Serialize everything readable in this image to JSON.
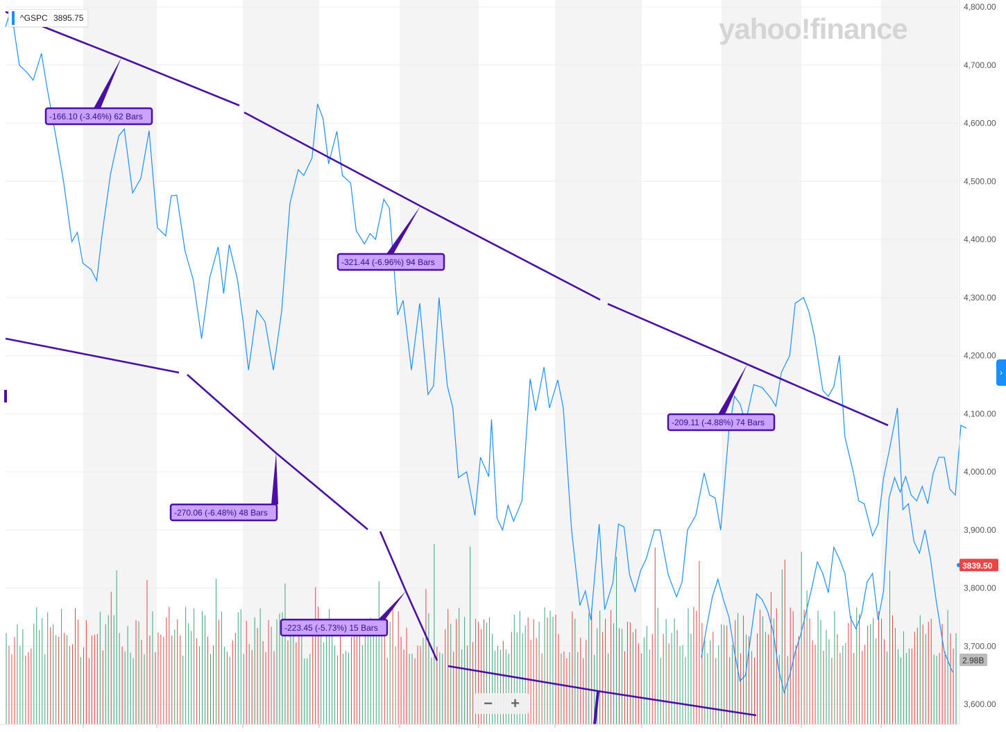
{
  "symbol": {
    "ticker": "^GSPC",
    "price": "3895.75"
  },
  "brand": {
    "logo_text": "yahoo!finance"
  },
  "controls": {
    "zoom_out_label": "−",
    "zoom_in_label": "+",
    "side_arrow_label": "›"
  },
  "colors": {
    "price_line": "#188fff",
    "drawing_line": "#4a0fa5",
    "label_fill": "#c9a3ff",
    "volume_up": "#3aa57b",
    "volume_down": "#e24545",
    "last_price_tag": "#e84545",
    "volume_tag": "#bbbbbb",
    "band_shade": "#f4f4f4",
    "grid": "#ececec"
  },
  "chart_data": {
    "type": "line",
    "title": "",
    "xlabel": "",
    "ylabel": "",
    "ylim": [
      3580,
      4815
    ],
    "grid": true,
    "y_ticks": [
      4800,
      4700,
      4600,
      4500,
      4400,
      4300,
      4200,
      4100,
      4000,
      3900,
      3800,
      3700,
      3600
    ],
    "y_tick_labels": [
      "4,800.00",
      "4,700.00",
      "4,600.00",
      "4,500.00",
      "4,400.00",
      "4,300.00",
      "4,200.00",
      "4,100.00",
      "4,000.00",
      "3,900.00",
      "3,800.00",
      "3,700.00",
      "3,600.00"
    ],
    "bar_count": 345,
    "series": [
      {
        "kind": "price",
        "points": [
          [
            0,
            4766
          ],
          [
            2,
            4796
          ],
          [
            5,
            4700
          ],
          [
            8,
            4686
          ],
          [
            10,
            4674
          ],
          [
            13,
            4720
          ],
          [
            15,
            4662
          ],
          [
            18,
            4583
          ],
          [
            21,
            4500
          ],
          [
            24,
            4396
          ],
          [
            26,
            4412
          ],
          [
            28,
            4359
          ],
          [
            31,
            4348
          ],
          [
            33,
            4329
          ],
          [
            35,
            4410
          ],
          [
            38,
            4512
          ],
          [
            41,
            4578
          ],
          [
            43,
            4590
          ],
          [
            46,
            4480
          ],
          [
            49,
            4505
          ],
          [
            52,
            4587
          ],
          [
            55,
            4420
          ],
          [
            58,
            4406
          ],
          [
            60,
            4475
          ],
          [
            62,
            4476
          ],
          [
            65,
            4380
          ],
          [
            68,
            4330
          ],
          [
            71,
            4229
          ],
          [
            74,
            4335
          ],
          [
            77,
            4387
          ],
          [
            79,
            4307
          ],
          [
            81,
            4391
          ],
          [
            84,
            4331
          ],
          [
            86,
            4260
          ],
          [
            88,
            4175
          ],
          [
            91,
            4278
          ],
          [
            94,
            4258
          ],
          [
            97,
            4175
          ],
          [
            100,
            4276
          ],
          [
            103,
            4462
          ],
          [
            106,
            4520
          ],
          [
            108,
            4510
          ],
          [
            111,
            4540
          ],
          [
            113,
            4633
          ],
          [
            115,
            4608
          ],
          [
            117,
            4530
          ],
          [
            120,
            4586
          ],
          [
            122,
            4510
          ],
          [
            125,
            4497
          ],
          [
            127,
            4415
          ],
          [
            130,
            4392
          ],
          [
            132,
            4410
          ],
          [
            134,
            4400
          ],
          [
            137,
            4469
          ],
          [
            139,
            4454
          ],
          [
            142,
            4270
          ],
          [
            144,
            4295
          ],
          [
            147,
            4175
          ],
          [
            150,
            4290
          ],
          [
            153,
            4133
          ],
          [
            155,
            4148
          ],
          [
            157,
            4300
          ],
          [
            160,
            4148
          ],
          [
            162,
            4110
          ],
          [
            164,
            3990
          ],
          [
            167,
            4000
          ],
          [
            170,
            3925
          ],
          [
            172,
            4025
          ],
          [
            175,
            3992
          ],
          [
            176,
            4090
          ],
          [
            178,
            3920
          ],
          [
            180,
            3900
          ],
          [
            182,
            3942
          ],
          [
            184,
            3915
          ],
          [
            187,
            3950
          ],
          [
            190,
            4160
          ],
          [
            192,
            4105
          ],
          [
            195,
            4180
          ],
          [
            197,
            4110
          ],
          [
            200,
            4158
          ],
          [
            202,
            4110
          ],
          [
            205,
            3900
          ],
          [
            208,
            3770
          ],
          [
            210,
            3795
          ],
          [
            212,
            3745
          ],
          [
            215,
            3910
          ],
          [
            217,
            3763
          ],
          [
            220,
            3810
          ],
          [
            222,
            3910
          ],
          [
            224,
            3905
          ],
          [
            226,
            3823
          ],
          [
            228,
            3794
          ],
          [
            230,
            3830
          ],
          [
            232,
            3850
          ],
          [
            235,
            3900
          ],
          [
            237,
            3900
          ],
          [
            240,
            3823
          ],
          [
            243,
            3785
          ],
          [
            245,
            3810
          ],
          [
            247,
            3900
          ],
          [
            250,
            3925
          ],
          [
            253,
            3998
          ],
          [
            255,
            3960
          ],
          [
            257,
            3955
          ],
          [
            259,
            3900
          ],
          [
            262,
            4072
          ],
          [
            264,
            4130
          ],
          [
            266,
            4117
          ],
          [
            268,
            4085
          ],
          [
            271,
            4150
          ],
          [
            274,
            4145
          ],
          [
            277,
            4128
          ],
          [
            279,
            4113
          ],
          [
            281,
            4171
          ],
          [
            284,
            4200
          ],
          [
            286,
            4290
          ],
          [
            289,
            4300
          ],
          [
            291,
            4275
          ],
          [
            293,
            4232
          ],
          [
            296,
            4140
          ],
          [
            298,
            4130
          ],
          [
            300,
            4147
          ],
          [
            302,
            4200
          ],
          [
            304,
            4060
          ],
          [
            307,
            4000
          ],
          [
            309,
            3950
          ],
          [
            311,
            3945
          ],
          [
            314,
            3890
          ],
          [
            316,
            3910
          ],
          [
            318,
            3990
          ],
          [
            320,
            4035
          ],
          [
            323,
            4110
          ],
          [
            325,
            3935
          ],
          [
            327,
            3945
          ],
          [
            329,
            3880
          ],
          [
            331,
            3860
          ],
          [
            333,
            3900
          ],
          [
            335,
            3850
          ],
          [
            337,
            3780
          ],
          [
            340,
            3690
          ],
          [
            343,
            3655
          ]
        ]
      },
      {
        "kind": "price-continued",
        "points": [
          [
            252,
            3680
          ],
          [
            254,
            3735
          ],
          [
            256,
            3785
          ],
          [
            258,
            3815
          ],
          [
            260,
            3780
          ],
          [
            262,
            3750
          ],
          [
            264,
            3690
          ],
          [
            266,
            3640
          ],
          [
            268,
            3650
          ],
          [
            270,
            3720
          ],
          [
            272,
            3790
          ],
          [
            274,
            3780
          ],
          [
            276,
            3760
          ],
          [
            278,
            3725
          ],
          [
            280,
            3660
          ],
          [
            282,
            3620
          ],
          [
            284,
            3650
          ],
          [
            286,
            3690
          ],
          [
            288,
            3720
          ],
          [
            290,
            3760
          ],
          [
            292,
            3800
          ],
          [
            294,
            3845
          ],
          [
            296,
            3825
          ],
          [
            298,
            3792
          ],
          [
            300,
            3870
          ],
          [
            302,
            3850
          ],
          [
            304,
            3825
          ],
          [
            306,
            3749
          ],
          [
            308,
            3730
          ],
          [
            310,
            3755
          ],
          [
            312,
            3810
          ],
          [
            314,
            3825
          ],
          [
            316,
            3745
          ],
          [
            318,
            3795
          ],
          [
            320,
            3955
          ],
          [
            322,
            3990
          ],
          [
            324,
            3965
          ],
          [
            326,
            3992
          ],
          [
            328,
            3960
          ],
          [
            330,
            3950
          ],
          [
            332,
            3975
          ],
          [
            334,
            3945
          ],
          [
            336,
            3998
          ],
          [
            338,
            4025
          ],
          [
            340,
            4025
          ],
          [
            342,
            3970
          ],
          [
            344,
            3960
          ],
          [
            346,
            4080
          ],
          [
            348,
            4075
          ]
        ]
      }
    ],
    "volume_axis_label": "2.98B",
    "last_price_label": "3839.50",
    "annotations": [
      {
        "text": "-166.10 (-3.46%) 62 Bars"
      },
      {
        "text": "-321.44 (-6.96%) 94 Bars"
      },
      {
        "text": "-209.11 (-4.88%) 74 Bars"
      },
      {
        "text": "-270.06 (-6.48%) 48 Bars"
      },
      {
        "text": "-223.45 (-5.73%) 15 Bars"
      }
    ]
  }
}
